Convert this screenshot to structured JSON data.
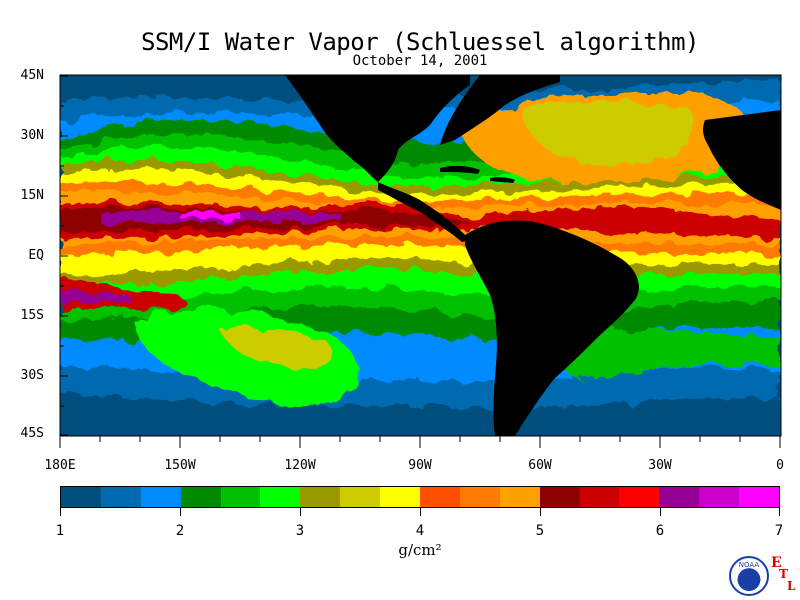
{
  "title": "SSM/I Water Vapor (Schluessel algorithm)",
  "date": "October 14, 2001",
  "y_axis_labels": [
    "45N",
    "30N",
    "15N",
    "EQ",
    "15S",
    "30S",
    "45S"
  ],
  "x_axis_labels": [
    "180E",
    "150W",
    "120W",
    "90W",
    "60W",
    "30W",
    "0"
  ],
  "colorbar": {
    "colors": [
      "#004e7d",
      "#006bb0",
      "#008cff",
      "#008a00",
      "#00c000",
      "#00ff00",
      "#9a9a00",
      "#cccc00",
      "#ffff00",
      "#ff5000",
      "#ff7a00",
      "#ffa000",
      "#8c0000",
      "#cc0000",
      "#ff0000",
      "#960096",
      "#cc00cc",
      "#ff00ff"
    ],
    "labels": [
      "1",
      "2",
      "3",
      "4",
      "5",
      "6",
      "7"
    ],
    "unit": "g/cm²"
  },
  "logo": {
    "text": "NOAA",
    "etl_letters": [
      "E",
      "T",
      "L"
    ]
  },
  "land_color": "#000000"
}
